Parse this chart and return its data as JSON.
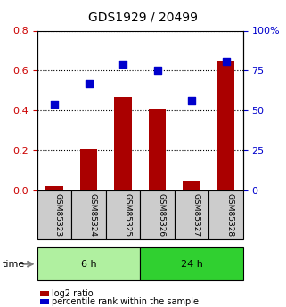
{
  "title": "GDS1929 / 20499",
  "samples": [
    "GSM85323",
    "GSM85324",
    "GSM85325",
    "GSM85326",
    "GSM85327",
    "GSM85328"
  ],
  "log2_ratio": [
    0.02,
    0.21,
    0.47,
    0.41,
    0.05,
    0.65
  ],
  "percentile_rank": [
    54,
    67,
    79,
    75,
    56,
    81
  ],
  "groups": [
    {
      "label": "6 h",
      "indices": [
        0,
        1,
        2
      ],
      "color": "#b0f0a0"
    },
    {
      "label": "24 h",
      "indices": [
        3,
        4,
        5
      ],
      "color": "#30d030"
    }
  ],
  "bar_color": "#aa0000",
  "dot_color": "#0000cc",
  "left_ylabel": "log2 ratio",
  "right_ylabel": "percentile rank",
  "left_ylim": [
    0,
    0.8
  ],
  "right_ylim": [
    0,
    100
  ],
  "left_yticks": [
    0,
    0.2,
    0.4,
    0.6,
    0.8
  ],
  "right_yticks": [
    0,
    25,
    50,
    75,
    100
  ],
  "right_yticklabels": [
    "0",
    "25",
    "50",
    "75",
    "100%"
  ],
  "time_label": "time",
  "legend_items": [
    {
      "label": "log2 ratio",
      "color": "#aa0000"
    },
    {
      "label": "percentile rank within the sample",
      "color": "#0000cc"
    }
  ],
  "background_color": "#ffffff",
  "plot_bg_color": "#ffffff",
  "grid_color": "#000000",
  "tick_label_color_left": "#cc0000",
  "tick_label_color_right": "#0000cc",
  "bar_width": 0.5,
  "group_bg_colors": [
    "#d8d8d8",
    "#d8d8d8"
  ],
  "sample_bg_color": "#cccccc"
}
